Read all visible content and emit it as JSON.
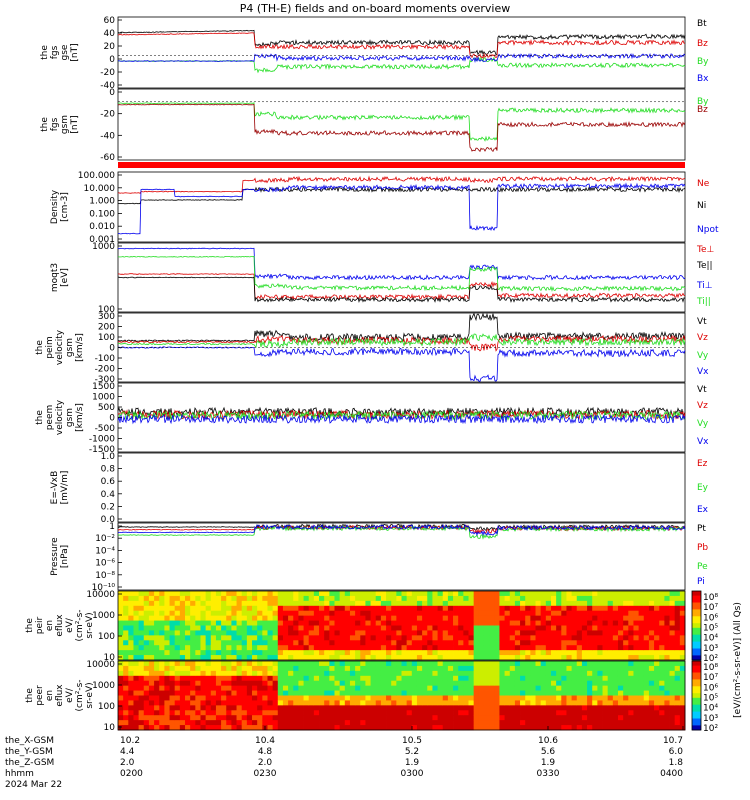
{
  "title": "P4 (TH-E) fields and on-board moments overview",
  "colors": {
    "black": "#000000",
    "red": "#dd0000",
    "darkred": "#990000",
    "green": "#22dd22",
    "blue": "#0000ee"
  },
  "chart_data": [
    {
      "type": "line",
      "ylabel": [
        "the",
        "fgs",
        "gse",
        "[nT]"
      ],
      "yticks": [
        "60",
        "40",
        "20",
        "0",
        "-20",
        "-40"
      ],
      "ylim": [
        -55,
        65
      ],
      "legend": [
        {
          "name": "Bt",
          "color": "#000000"
        },
        {
          "name": "Bz",
          "color": "#dd0000"
        },
        {
          "name": "By",
          "color": "#22dd22"
        },
        {
          "name": "Bx",
          "color": "#0000ee"
        }
      ]
    },
    {
      "type": "line",
      "ylabel": [
        "the",
        "fgs",
        "gsm",
        "[nT]"
      ],
      "yticks": [
        "0",
        "-20",
        "-40",
        "-60"
      ],
      "ylim": [
        -70,
        12
      ],
      "legend": [
        {
          "name": "By",
          "color": "#22dd22"
        },
        {
          "name": "Bz",
          "color": "#990000"
        }
      ]
    },
    {
      "type": "line",
      "ylabel": [
        "Density",
        "[cm-3]"
      ],
      "yticks": [
        "100.000",
        "10.000",
        "1.000",
        "0.100",
        "0.010",
        "0.001"
      ],
      "legend": [
        {
          "name": "Ne",
          "color": "#dd0000"
        },
        {
          "name": "Ni",
          "color": "#000000"
        },
        {
          "name": "Npot",
          "color": "#0000ee"
        }
      ]
    },
    {
      "type": "line",
      "ylabel": [
        "moqt3",
        "[eV]"
      ],
      "yticks": [
        "1000",
        "100"
      ],
      "legend": [
        {
          "name": "Te⊥",
          "color": "#dd0000"
        },
        {
          "name": "Te||",
          "color": "#000000"
        },
        {
          "name": "Ti⊥",
          "color": "#0000ee"
        },
        {
          "name": "Ti||",
          "color": "#22dd22"
        }
      ]
    },
    {
      "type": "line",
      "ylabel": [
        "the",
        "peim",
        "velocity",
        "gsm",
        "[km/s]"
      ],
      "yticks": [
        "300",
        "200",
        "100",
        "0",
        "-100",
        "-200",
        "-300"
      ],
      "ylim": [
        -330,
        330
      ],
      "legend": [
        {
          "name": "Vt",
          "color": "#000000"
        },
        {
          "name": "Vz",
          "color": "#dd0000"
        },
        {
          "name": "Vy",
          "color": "#22dd22"
        },
        {
          "name": "Vx",
          "color": "#0000ee"
        }
      ]
    },
    {
      "type": "line",
      "ylabel": [
        "the",
        "peem",
        "velocity",
        "gsm",
        "[km/s]"
      ],
      "yticks": [
        "1500",
        "1000",
        "500",
        "0",
        "-500",
        "-1000",
        "-1500"
      ],
      "ylim": [
        -1600,
        1600
      ],
      "legend": [
        {
          "name": "Vt",
          "color": "#000000"
        },
        {
          "name": "Vz",
          "color": "#dd0000"
        },
        {
          "name": "Vy",
          "color": "#22dd22"
        },
        {
          "name": "Vx",
          "color": "#0000ee"
        }
      ]
    },
    {
      "type": "line",
      "ylabel": [
        "E=-VxB",
        "[mV/m]"
      ],
      "yticks": [
        "1.0",
        "0.8",
        "0.6",
        "0.4",
        "0.2",
        "0.0"
      ],
      "ylim": [
        0,
        1
      ],
      "legend": [
        {
          "name": "Ez",
          "color": "#dd0000"
        },
        {
          "name": "Ey",
          "color": "#22dd22"
        },
        {
          "name": "Ex",
          "color": "#0000ee"
        }
      ]
    },
    {
      "type": "line",
      "ylabel": [
        "Pressure",
        "[nPa]"
      ],
      "yticks": [
        "1",
        "10⁻²",
        "10⁻⁴",
        "10⁻⁶",
        "10⁻⁸",
        "10⁻¹⁰"
      ],
      "legend": [
        {
          "name": "Pt",
          "color": "#000000"
        },
        {
          "name": "Pb",
          "color": "#dd0000"
        },
        {
          "name": "Pe",
          "color": "#22dd22"
        },
        {
          "name": "Pi",
          "color": "#0000ee"
        }
      ]
    },
    {
      "type": "heatmap",
      "ylabel": [
        "the",
        "peir",
        "en",
        "eflux",
        "eV/",
        "(cm²-s-",
        "sr-eV)"
      ],
      "yticks": [
        "10000",
        "1000",
        "100",
        "10"
      ],
      "cbar_ticks": [
        "10⁸",
        "10⁷",
        "10⁶",
        "10⁵",
        "10⁴",
        "10³",
        "10²"
      ]
    },
    {
      "type": "heatmap",
      "ylabel": [
        "the",
        "peer",
        "en",
        "eflux",
        "eV/",
        "(cm²-s-",
        "sr-eV)"
      ],
      "yticks": [
        "10000",
        "1000",
        "100",
        "10"
      ],
      "cbar_ticks": [
        "10⁸",
        "10⁷",
        "10⁶",
        "10⁵",
        "10⁴",
        "10³",
        "10²"
      ]
    }
  ],
  "cbar_label": "[eV/(cm²-s-sr-eV)] (All Qs)",
  "x_axis": {
    "rows": [
      {
        "label": "the_X-GSM",
        "values": [
          "10.2",
          "10.4",
          "10.5",
          "10.6",
          "10.7"
        ]
      },
      {
        "label": "the_Y-GSM",
        "values": [
          "4.4",
          "4.8",
          "5.2",
          "5.6",
          "6.0"
        ]
      },
      {
        "label": "the_Z-GSM",
        "values": [
          "2.0",
          "2.0",
          "1.9",
          "1.9",
          "1.8"
        ]
      },
      {
        "label": "hhmm",
        "values": [
          "0200",
          "0230",
          "0300",
          "0330",
          "0400"
        ]
      }
    ],
    "date": "2024 Mar 22"
  }
}
